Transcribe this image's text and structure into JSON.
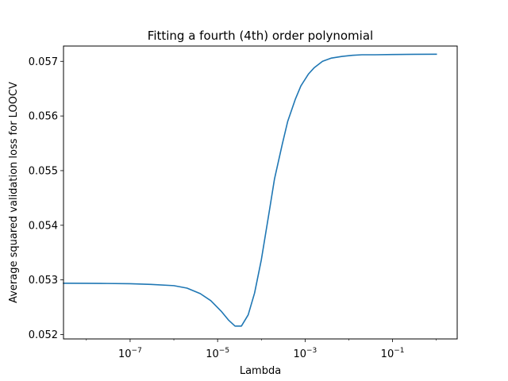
{
  "chart_data": {
    "type": "line",
    "title": "Fitting a fourth (4th) order polynomial",
    "xlabel": "Lambda",
    "ylabel": "Average squared validation loss for LOOCV",
    "xscale": "log",
    "xlim": [
      3e-09,
      3
    ],
    "ylim": [
      0.05192,
      0.05728
    ],
    "grid": false,
    "legend": "none",
    "color": "#1f77b4",
    "x_ticks": [
      {
        "value": 1e-07,
        "base": "10",
        "exp": "−7"
      },
      {
        "value": 1e-05,
        "base": "10",
        "exp": "−5"
      },
      {
        "value": 0.001,
        "base": "10",
        "exp": "−3"
      },
      {
        "value": 0.1,
        "base": "10",
        "exp": "−1"
      }
    ],
    "y_ticks": [
      {
        "value": 0.052,
        "label": "0.052"
      },
      {
        "value": 0.053,
        "label": "0.053"
      },
      {
        "value": 0.054,
        "label": "0.054"
      },
      {
        "value": 0.055,
        "label": "0.055"
      },
      {
        "value": 0.056,
        "label": "0.056"
      },
      {
        "value": 0.057,
        "label": "0.057"
      }
    ],
    "series": [
      {
        "x": [
          3e-09,
          1e-08,
          3e-08,
          1e-07,
          3e-07,
          1e-06,
          2e-06,
          4e-06,
          7e-06,
          1.2e-05,
          1.8e-05,
          2.5e-05,
          3.5e-05,
          5e-05,
          7e-05,
          0.0001,
          0.00015,
          0.0002,
          0.0003,
          0.0004,
          0.0006,
          0.0008,
          0.0012,
          0.0016,
          0.0025,
          0.004,
          0.007,
          0.012,
          0.02,
          0.04,
          0.1,
          0.3,
          1
        ],
        "y": [
          0.05294,
          0.052938,
          0.052935,
          0.05293,
          0.052918,
          0.052895,
          0.05285,
          0.05275,
          0.05262,
          0.05243,
          0.05226,
          0.052155,
          0.052155,
          0.05236,
          0.05276,
          0.05337,
          0.05423,
          0.05485,
          0.05548,
          0.0559,
          0.05631,
          0.05655,
          0.05677,
          0.05688,
          0.057,
          0.05706,
          0.05709,
          0.05711,
          0.05712,
          0.05712,
          0.057125,
          0.057128,
          0.05713
        ]
      }
    ]
  }
}
